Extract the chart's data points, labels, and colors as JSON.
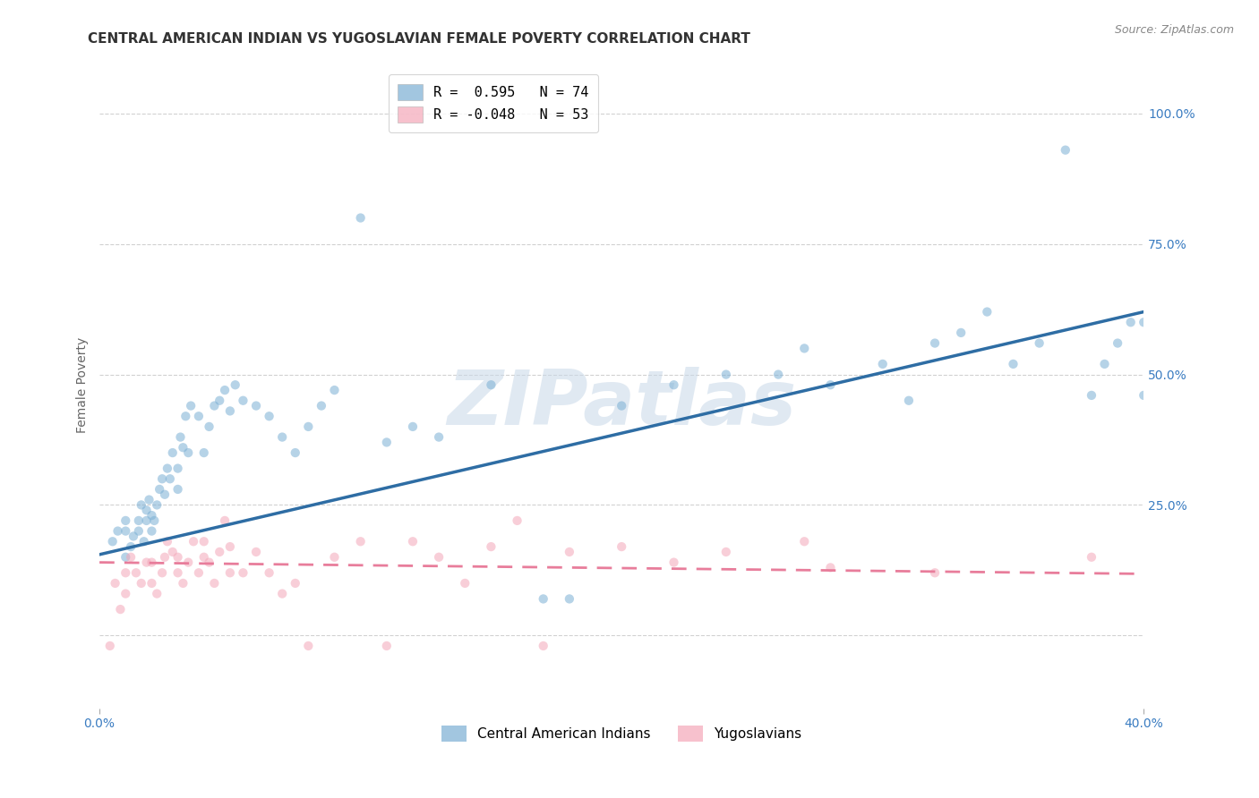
{
  "title": "CENTRAL AMERICAN INDIAN VS YUGOSLAVIAN FEMALE POVERTY CORRELATION CHART",
  "source": "Source: ZipAtlas.com",
  "ylabel": "Female Poverty",
  "yticks": [
    0.0,
    0.25,
    0.5,
    0.75,
    1.0
  ],
  "ytick_labels": [
    "",
    "25.0%",
    "50.0%",
    "75.0%",
    "100.0%"
  ],
  "xlim": [
    0.0,
    0.4
  ],
  "ylim": [
    -0.14,
    1.1
  ],
  "legend_entries": [
    {
      "label": "R =  0.595   N = 74",
      "color": "#7BAFD4"
    },
    {
      "label": "R = -0.048   N = 53",
      "color": "#F4A7B9"
    }
  ],
  "series1_label": "Central American Indians",
  "series2_label": "Yugoslavians",
  "series1_color": "#7BAFD4",
  "series2_color": "#F4A7B9",
  "series1_line_color": "#2E6DA4",
  "series2_line_color": "#E87D9B",
  "watermark_text": "ZIPatlas",
  "blue_scatter_x": [
    0.005,
    0.007,
    0.01,
    0.01,
    0.01,
    0.012,
    0.013,
    0.015,
    0.015,
    0.016,
    0.017,
    0.018,
    0.018,
    0.019,
    0.02,
    0.02,
    0.021,
    0.022,
    0.023,
    0.024,
    0.025,
    0.026,
    0.027,
    0.028,
    0.03,
    0.03,
    0.031,
    0.032,
    0.033,
    0.034,
    0.035,
    0.038,
    0.04,
    0.042,
    0.044,
    0.046,
    0.048,
    0.05,
    0.052,
    0.055,
    0.06,
    0.065,
    0.07,
    0.075,
    0.08,
    0.085,
    0.09,
    0.1,
    0.11,
    0.12,
    0.13,
    0.15,
    0.17,
    0.18,
    0.2,
    0.22,
    0.24,
    0.26,
    0.27,
    0.28,
    0.3,
    0.31,
    0.32,
    0.33,
    0.34,
    0.35,
    0.36,
    0.37,
    0.38,
    0.385,
    0.39,
    0.395,
    0.4,
    0.4
  ],
  "blue_scatter_y": [
    0.18,
    0.2,
    0.15,
    0.2,
    0.22,
    0.17,
    0.19,
    0.2,
    0.22,
    0.25,
    0.18,
    0.22,
    0.24,
    0.26,
    0.2,
    0.23,
    0.22,
    0.25,
    0.28,
    0.3,
    0.27,
    0.32,
    0.3,
    0.35,
    0.28,
    0.32,
    0.38,
    0.36,
    0.42,
    0.35,
    0.44,
    0.42,
    0.35,
    0.4,
    0.44,
    0.45,
    0.47,
    0.43,
    0.48,
    0.45,
    0.44,
    0.42,
    0.38,
    0.35,
    0.4,
    0.44,
    0.47,
    0.8,
    0.37,
    0.4,
    0.38,
    0.48,
    0.07,
    0.07,
    0.44,
    0.48,
    0.5,
    0.5,
    0.55,
    0.48,
    0.52,
    0.45,
    0.56,
    0.58,
    0.62,
    0.52,
    0.56,
    0.93,
    0.46,
    0.52,
    0.56,
    0.6,
    0.46,
    0.6
  ],
  "pink_scatter_x": [
    0.004,
    0.006,
    0.008,
    0.01,
    0.01,
    0.012,
    0.014,
    0.016,
    0.018,
    0.02,
    0.02,
    0.022,
    0.024,
    0.025,
    0.026,
    0.028,
    0.03,
    0.03,
    0.032,
    0.034,
    0.036,
    0.038,
    0.04,
    0.04,
    0.042,
    0.044,
    0.046,
    0.048,
    0.05,
    0.05,
    0.055,
    0.06,
    0.065,
    0.07,
    0.075,
    0.08,
    0.09,
    0.1,
    0.11,
    0.12,
    0.13,
    0.14,
    0.15,
    0.16,
    0.17,
    0.18,
    0.2,
    0.22,
    0.24,
    0.27,
    0.28,
    0.32,
    0.38
  ],
  "pink_scatter_y": [
    -0.02,
    0.1,
    0.05,
    0.08,
    0.12,
    0.15,
    0.12,
    0.1,
    0.14,
    0.1,
    0.14,
    0.08,
    0.12,
    0.15,
    0.18,
    0.16,
    0.12,
    0.15,
    0.1,
    0.14,
    0.18,
    0.12,
    0.15,
    0.18,
    0.14,
    0.1,
    0.16,
    0.22,
    0.17,
    0.12,
    0.12,
    0.16,
    0.12,
    0.08,
    0.1,
    -0.02,
    0.15,
    0.18,
    -0.02,
    0.18,
    0.15,
    0.1,
    0.17,
    0.22,
    -0.02,
    0.16,
    0.17,
    0.14,
    0.16,
    0.18,
    0.13,
    0.12,
    0.15
  ],
  "blue_line_x": [
    0.0,
    0.4
  ],
  "blue_line_y": [
    0.155,
    0.62
  ],
  "pink_line_x": [
    0.0,
    0.4
  ],
  "pink_line_y": [
    0.14,
    0.118
  ],
  "grid_color": "#CCCCCC",
  "background_color": "#FFFFFF",
  "title_fontsize": 11,
  "axis_label_fontsize": 10,
  "tick_fontsize": 10,
  "source_fontsize": 9,
  "marker_size": 55
}
